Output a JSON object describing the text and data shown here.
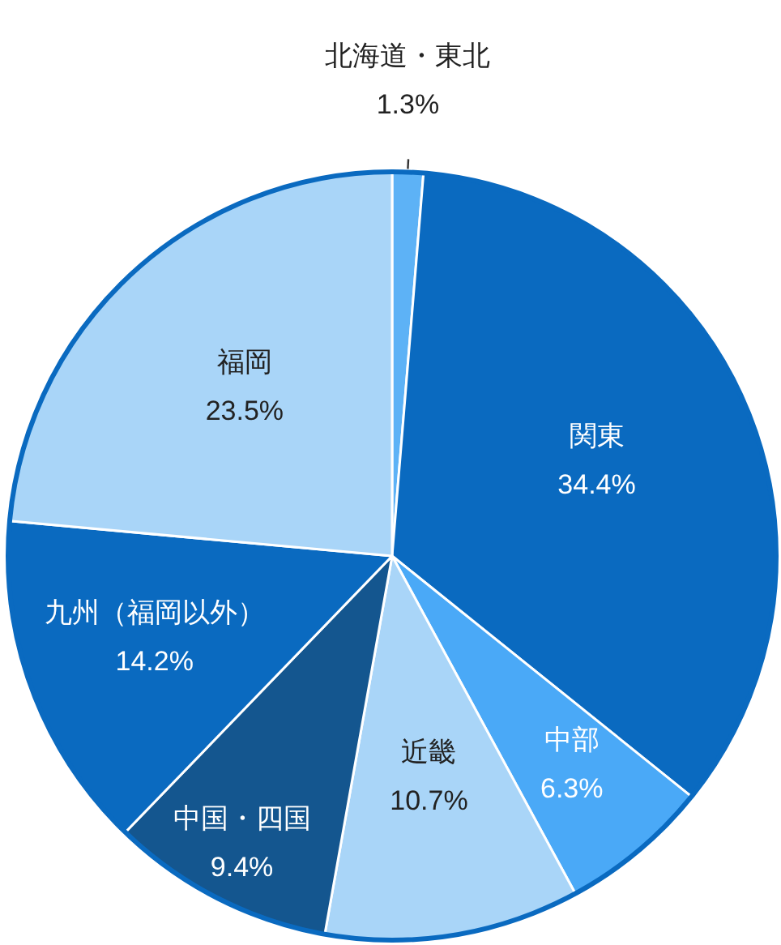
{
  "chart_data": {
    "type": "pie",
    "categories": [
      "北海道・東北",
      "関東",
      "中部",
      "近畿",
      "中国・四国",
      "九州（福岡以外）",
      "福岡"
    ],
    "values": [
      1.3,
      34.4,
      6.3,
      10.7,
      9.4,
      14.2,
      23.5
    ],
    "colors": [
      "#5db2f6",
      "#0a6ac0",
      "#4aa9f7",
      "#a9d5f8",
      "#14568f",
      "#0a6ac0",
      "#a9d5f8"
    ],
    "value_labels": [
      "1.3%",
      "34.4%",
      "6.3%",
      "10.7%",
      "9.4%",
      "14.2%",
      "23.5%"
    ]
  }
}
